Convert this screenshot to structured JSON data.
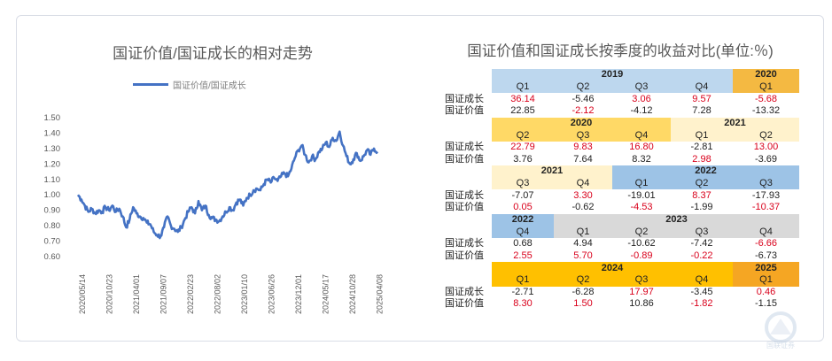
{
  "chart_data": {
    "type": "line",
    "title": "国证价值/国证成长的相对走势",
    "legend": "国证价值/国证成长",
    "legend_position": "top",
    "ylim": [
      0.6,
      1.5
    ],
    "yticks": [
      "0.60",
      "0.70",
      "0.80",
      "0.90",
      "1.00",
      "1.10",
      "1.20",
      "1.30",
      "1.40",
      "1.50"
    ],
    "xticks": [
      "2020/05/14",
      "2020/10/23",
      "2021/04/01",
      "2021/09/07",
      "2022/02/23",
      "2022/08/02",
      "2023/01/10",
      "2023/06/26",
      "2023/12/01",
      "2024/05/17",
      "2024/10/28",
      "2025/04/08"
    ],
    "grid": false,
    "series": [
      {
        "name": "国证价值/国证成长",
        "color": "#4472c4",
        "points": [
          [
            0,
            1.0
          ],
          [
            1,
            0.97
          ],
          [
            2,
            0.93
          ],
          [
            3,
            0.89
          ],
          [
            4,
            0.91
          ],
          [
            5,
            0.88
          ],
          [
            6,
            0.9
          ],
          [
            7,
            0.89
          ],
          [
            8,
            0.92
          ],
          [
            9,
            0.9
          ],
          [
            10,
            0.93
          ],
          [
            11,
            0.89
          ],
          [
            12,
            0.91
          ],
          [
            13,
            0.86
          ],
          [
            14,
            0.79
          ],
          [
            15,
            0.84
          ],
          [
            16,
            0.92
          ],
          [
            17,
            0.88
          ],
          [
            18,
            0.86
          ],
          [
            19,
            0.85
          ],
          [
            20,
            0.82
          ],
          [
            21,
            0.81
          ],
          [
            22,
            0.76
          ],
          [
            23,
            0.74
          ],
          [
            24,
            0.73
          ],
          [
            25,
            0.79
          ],
          [
            26,
            0.86
          ],
          [
            27,
            0.8
          ],
          [
            28,
            0.78
          ],
          [
            29,
            0.76
          ],
          [
            30,
            0.79
          ],
          [
            31,
            0.84
          ],
          [
            32,
            0.89
          ],
          [
            33,
            0.92
          ],
          [
            34,
            0.88
          ],
          [
            35,
            0.96
          ],
          [
            36,
            0.9
          ],
          [
            37,
            0.93
          ],
          [
            38,
            0.87
          ],
          [
            39,
            0.85
          ],
          [
            40,
            0.84
          ],
          [
            41,
            0.83
          ],
          [
            42,
            0.86
          ],
          [
            43,
            0.89
          ],
          [
            44,
            0.92
          ],
          [
            45,
            0.9
          ],
          [
            46,
            0.95
          ],
          [
            47,
            0.97
          ],
          [
            48,
            0.93
          ],
          [
            49,
            0.98
          ],
          [
            50,
            1.0
          ],
          [
            51,
            1.03
          ],
          [
            52,
            1.04
          ],
          [
            53,
            1.03
          ],
          [
            54,
            1.07
          ],
          [
            55,
            1.1
          ],
          [
            56,
            1.08
          ],
          [
            57,
            1.11
          ],
          [
            58,
            1.09
          ],
          [
            59,
            1.12
          ],
          [
            60,
            1.14
          ],
          [
            61,
            1.12
          ],
          [
            62,
            1.17
          ],
          [
            63,
            1.24
          ],
          [
            64,
            1.29
          ],
          [
            65,
            1.32
          ],
          [
            66,
            1.26
          ],
          [
            67,
            1.21
          ],
          [
            68,
            1.25
          ],
          [
            69,
            1.23
          ],
          [
            70,
            1.28
          ],
          [
            71,
            1.3
          ],
          [
            72,
            1.34
          ],
          [
            73,
            1.31
          ],
          [
            74,
            1.37
          ],
          [
            75,
            1.35
          ],
          [
            76,
            1.41
          ],
          [
            77,
            1.32
          ],
          [
            78,
            1.25
          ],
          [
            79,
            1.2
          ],
          [
            80,
            1.23
          ],
          [
            81,
            1.27
          ],
          [
            82,
            1.22
          ],
          [
            83,
            1.25
          ],
          [
            84,
            1.29
          ],
          [
            85,
            1.26
          ],
          [
            86,
            1.3
          ],
          [
            87,
            1.28
          ]
        ]
      }
    ]
  },
  "table": {
    "title": "国证价值和国证成长按季度的收益对比(单位:％)",
    "row_labels": [
      "国证成长",
      "国证价值"
    ],
    "blocks": [
      {
        "years": [
          {
            "label": "2019",
            "span": 4,
            "bg": "bg-blue"
          },
          {
            "label": "2020",
            "span": 1,
            "bg": "bg-orange2"
          }
        ],
        "quarters": [
          {
            "q": "Q1",
            "bg": "bg-blue"
          },
          {
            "q": "Q2",
            "bg": "bg-blue"
          },
          {
            "q": "Q3",
            "bg": "bg-blue"
          },
          {
            "q": "Q4",
            "bg": "bg-blue"
          },
          {
            "q": "Q1",
            "bg": "bg-orange2"
          }
        ],
        "growth": [
          {
            "v": "36.14",
            "red": true
          },
          {
            "v": "-5.46",
            "red": false
          },
          {
            "v": "3.06",
            "red": true
          },
          {
            "v": "9.57",
            "red": true
          },
          {
            "v": "-5.68",
            "red": true
          }
        ],
        "value": [
          {
            "v": "22.85",
            "red": false
          },
          {
            "v": "-2.12",
            "red": true
          },
          {
            "v": "-4.12",
            "red": false
          },
          {
            "v": "7.28",
            "red": false
          },
          {
            "v": "-13.32",
            "red": false
          }
        ]
      },
      {
        "years": [
          {
            "label": "2020",
            "span": 3,
            "bg": "bg-orange"
          },
          {
            "label": "2021",
            "span": 2,
            "bg": "bg-cream"
          }
        ],
        "quarters": [
          {
            "q": "Q2",
            "bg": "bg-orange"
          },
          {
            "q": "Q3",
            "bg": "bg-orange"
          },
          {
            "q": "Q4",
            "bg": "bg-orange"
          },
          {
            "q": "Q1",
            "bg": "bg-cream"
          },
          {
            "q": "Q2",
            "bg": "bg-cream"
          }
        ],
        "growth": [
          {
            "v": "22.79",
            "red": true
          },
          {
            "v": "9.83",
            "red": true
          },
          {
            "v": "16.80",
            "red": true
          },
          {
            "v": "-2.81",
            "red": false
          },
          {
            "v": "13.00",
            "red": true
          }
        ],
        "value": [
          {
            "v": "3.76",
            "red": false
          },
          {
            "v": "7.64",
            "red": false
          },
          {
            "v": "8.32",
            "red": false
          },
          {
            "v": "2.98",
            "red": true
          },
          {
            "v": "-3.69",
            "red": false
          }
        ]
      },
      {
        "years": [
          {
            "label": "2021",
            "span": 2,
            "bg": "bg-cream"
          },
          {
            "label": "2022",
            "span": 3,
            "bg": "bg-blue2"
          }
        ],
        "quarters": [
          {
            "q": "Q3",
            "bg": "bg-cream"
          },
          {
            "q": "Q4",
            "bg": "bg-cream"
          },
          {
            "q": "Q1",
            "bg": "bg-blue2"
          },
          {
            "q": "Q2",
            "bg": "bg-blue2"
          },
          {
            "q": "Q3",
            "bg": "bg-blue2"
          }
        ],
        "growth": [
          {
            "v": "-7.07",
            "red": false
          },
          {
            "v": "3.30",
            "red": true
          },
          {
            "v": "-19.01",
            "red": false
          },
          {
            "v": "8.37",
            "red": true
          },
          {
            "v": "-17.93",
            "red": false
          }
        ],
        "value": [
          {
            "v": "0.05",
            "red": true
          },
          {
            "v": "-0.62",
            "red": false
          },
          {
            "v": "-4.53",
            "red": true
          },
          {
            "v": "-1.99",
            "red": false
          },
          {
            "v": "-10.37",
            "red": true
          }
        ]
      },
      {
        "years": [
          {
            "label": "2022",
            "span": 1,
            "bg": "bg-blue2"
          },
          {
            "label": "2023",
            "span": 4,
            "bg": "bg-gray"
          }
        ],
        "quarters": [
          {
            "q": "Q4",
            "bg": "bg-blue2"
          },
          {
            "q": "Q1",
            "bg": "bg-gray"
          },
          {
            "q": "Q2",
            "bg": "bg-gray"
          },
          {
            "q": "Q3",
            "bg": "bg-gray"
          },
          {
            "q": "Q4",
            "bg": "bg-gray"
          }
        ],
        "growth": [
          {
            "v": "0.68",
            "red": false
          },
          {
            "v": "4.94",
            "red": false
          },
          {
            "v": "-10.62",
            "red": false
          },
          {
            "v": "-7.42",
            "red": false
          },
          {
            "v": "-6.66",
            "red": true
          }
        ],
        "value": [
          {
            "v": "2.55",
            "red": true
          },
          {
            "v": "5.70",
            "red": true
          },
          {
            "v": "-0.89",
            "red": true
          },
          {
            "v": "-0.22",
            "red": true
          },
          {
            "v": "-6.73",
            "red": false
          }
        ]
      },
      {
        "years": [
          {
            "label": "2024",
            "span": 4,
            "bg": "bg-gold"
          },
          {
            "label": "2025",
            "span": 1,
            "bg": "bg-gold2"
          }
        ],
        "quarters": [
          {
            "q": "Q1",
            "bg": "bg-gold"
          },
          {
            "q": "Q2",
            "bg": "bg-gold"
          },
          {
            "q": "Q3",
            "bg": "bg-gold"
          },
          {
            "q": "Q4",
            "bg": "bg-gold"
          },
          {
            "q": "Q1",
            "bg": "bg-gold2"
          }
        ],
        "growth": [
          {
            "v": "-2.71",
            "red": false
          },
          {
            "v": "-6.28",
            "red": false
          },
          {
            "v": "17.97",
            "red": true
          },
          {
            "v": "-3.45",
            "red": false
          },
          {
            "v": "0.46",
            "red": true
          }
        ],
        "value": [
          {
            "v": "8.30",
            "red": true
          },
          {
            "v": "1.50",
            "red": true
          },
          {
            "v": "10.86",
            "red": false
          },
          {
            "v": "-1.82",
            "red": true
          },
          {
            "v": "-1.15",
            "red": false
          }
        ]
      }
    ]
  },
  "watermark": "国联证券"
}
